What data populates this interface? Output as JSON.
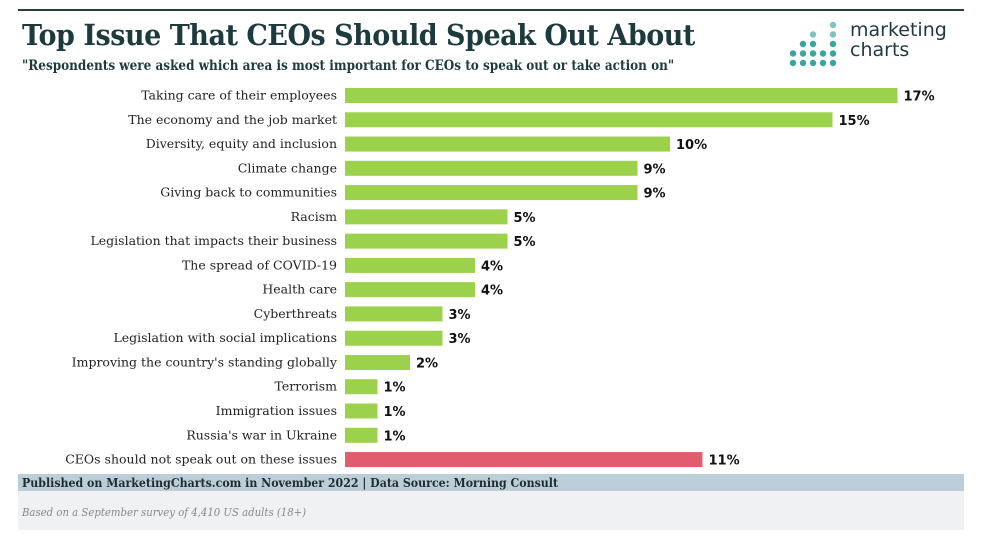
{
  "header": {
    "title": "Top Issue That CEOs Should Speak Out About",
    "subtitle": "\"Respondents were asked which area is most important for CEOs to speak out or take action on\"",
    "logo_line1": "marketing",
    "logo_line2": "charts"
  },
  "footer": {
    "published": "Published on MarketingCharts.com in November 2022 | Data Source: Morning Consult",
    "note": "Based on a September survey of 4,410 US adults (18+)"
  },
  "colors": {
    "bar": "#9cd14b",
    "highlight": "#e25c70",
    "logo_dots": "#3aa5a0"
  },
  "chart_data": {
    "type": "bar",
    "orientation": "horizontal",
    "unit": "%",
    "title": "Top Issue That CEOs Should Speak Out About",
    "categories": [
      "Taking care of their employees",
      "The economy and the job market",
      "Diversity, equity and inclusion",
      "Climate change",
      "Giving back to communities",
      "Racism",
      "Legislation that impacts their business",
      "The spread of COVID-19",
      "Health care",
      "Cyberthreats",
      "Legislation with social implications",
      "Improving the country's standing globally",
      "Terrorism",
      "Immigration issues",
      "Russia's war in Ukraine",
      "CEOs should not speak out on these issues"
    ],
    "values": [
      17,
      15,
      10,
      9,
      9,
      5,
      5,
      4,
      4,
      3,
      3,
      2,
      1,
      1,
      1,
      11
    ],
    "labels": [
      "17%",
      "15%",
      "10%",
      "9%",
      "9%",
      "5%",
      "5%",
      "4%",
      "4%",
      "3%",
      "3%",
      "2%",
      "1%",
      "1%",
      "1%",
      "11%"
    ],
    "highlight_index": 15,
    "grid": false
  }
}
